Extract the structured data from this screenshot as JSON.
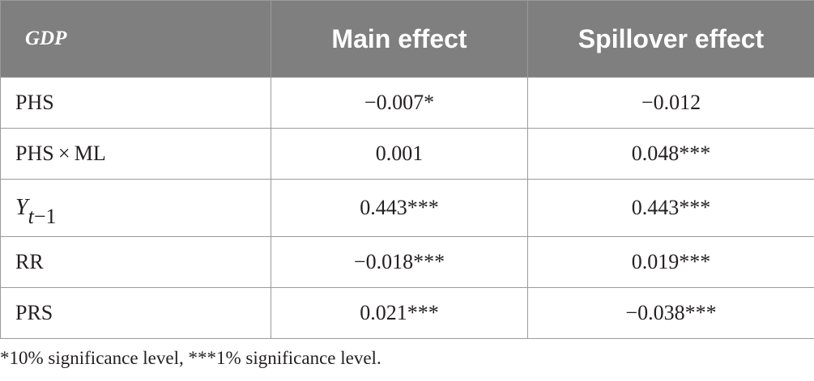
{
  "table": {
    "header": {
      "variable": "GDP",
      "main": "Main effect",
      "spillover": "Spillover effect"
    },
    "rows": [
      {
        "label": "PHS",
        "main": "−0.007*",
        "spillover": "−0.012"
      },
      {
        "label": "PHS × ML",
        "main": "0.001",
        "spillover": "0.048***"
      },
      {
        "label_symbol": "Y",
        "label_subscript_var": "t",
        "label_subscript_rest": "−1",
        "main": "0.443***",
        "spillover": "0.443***"
      },
      {
        "label": "RR",
        "main": "−0.018***",
        "spillover": "0.019***"
      },
      {
        "label": "PRS",
        "main": "0.021***",
        "spillover": "−0.038***"
      }
    ]
  },
  "footnote": "*10% significance level, ***1% significance level."
}
